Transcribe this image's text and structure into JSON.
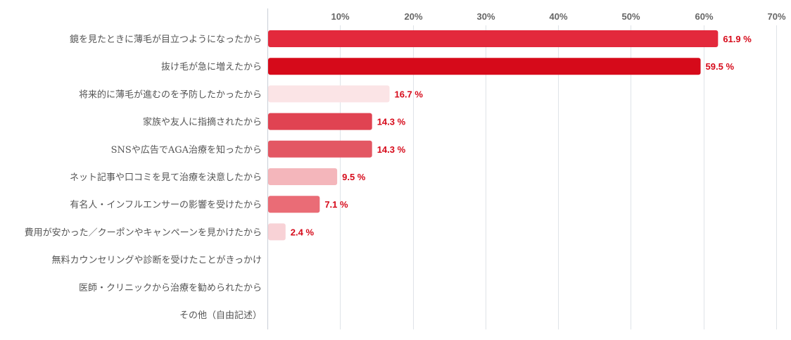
{
  "chart_data": {
    "type": "bar",
    "orientation": "horizontal",
    "categories": [
      "鏡を見たときに薄毛が目立つようになったから",
      "抜け毛が急に増えたから",
      "将来的に薄毛が進むのを予防したかったから",
      "家族や友人に指摘されたから",
      "SNSや広告でAGA治療を知ったから",
      "ネット記事や口コミを見て治療を決意したから",
      "有名人・インフルエンサーの影響を受けたから",
      "費用が安かった／クーポンやキャンペーンを見かけたから",
      "無料カウンセリングや診断を受けたことがきっかけ",
      "医師・クリニックから治療を勧められたから",
      "その他（自由記述）"
    ],
    "values": [
      61.9,
      59.5,
      16.7,
      14.3,
      14.3,
      9.5,
      7.1,
      2.4,
      0,
      0,
      0
    ],
    "data_labels": [
      "61.9 %",
      "59.5 %",
      "16.7 %",
      "14.3 %",
      "14.3 %",
      "9.5 %",
      "7.1 %",
      "2.4 %",
      "",
      "",
      ""
    ],
    "bar_colors": [
      "#e3293c",
      "#d60a1a",
      "#fbe4e6",
      "#e04352",
      "#e35763",
      "#f4b6bb",
      "#ea6c76",
      "#f8d2d6",
      "#ffffff",
      "#ffffff",
      "#ffffff"
    ],
    "xlim": [
      0,
      70
    ],
    "xticks": [
      10,
      20,
      30,
      40,
      50,
      60,
      70
    ],
    "xtick_labels": [
      "10%",
      "20%",
      "30%",
      "40%",
      "50%",
      "60%",
      "70%"
    ],
    "xaxis_position": "top",
    "grid": true,
    "label_color": "#d60a1a"
  }
}
